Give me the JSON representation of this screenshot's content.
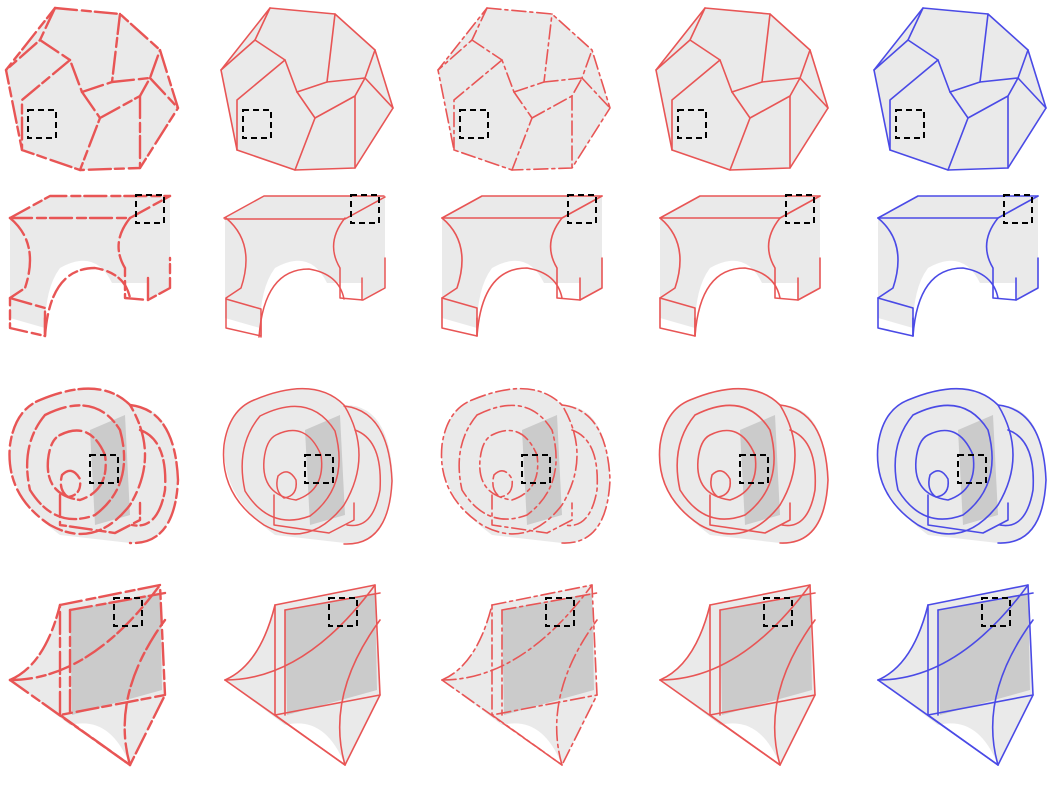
{
  "colors": {
    "prediction_red": "#e85555",
    "ground_truth_blue": "#4a4ae6",
    "surface_fill": "#e6e6e6",
    "surface_dark": "#bdbdbd",
    "highlight_box": "#000000",
    "background": "#ffffff"
  },
  "grid": {
    "rows": [
      {
        "shape": "dodecahedron",
        "variants": [
          "fragmented",
          "clean",
          "dashed",
          "clean",
          "reference"
        ]
      },
      {
        "shape": "arch-block",
        "variants": [
          "fragmented",
          "wobbly",
          "clean",
          "clean",
          "reference"
        ]
      },
      {
        "shape": "ring-disc",
        "variants": [
          "fragmented",
          "wobbly",
          "dashed",
          "clean",
          "reference"
        ]
      },
      {
        "shape": "swept-plate",
        "variants": [
          "fragmented",
          "clean",
          "dashed",
          "clean",
          "reference"
        ]
      }
    ],
    "column_colors": [
      "red",
      "red",
      "red",
      "red",
      "blue"
    ]
  }
}
